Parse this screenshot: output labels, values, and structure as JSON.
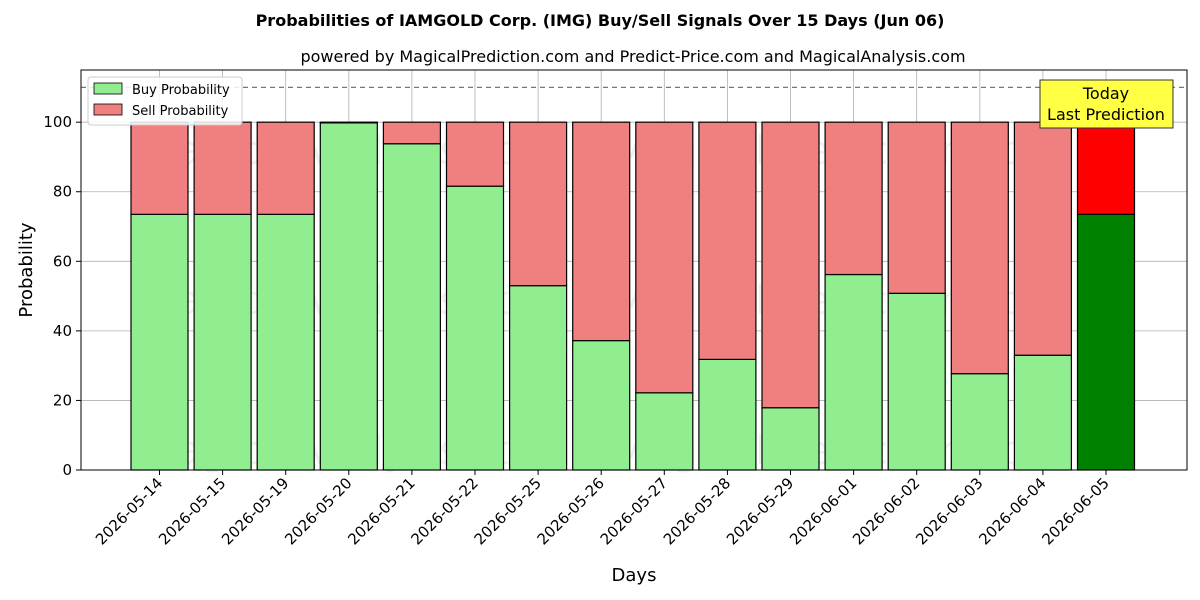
{
  "chart_data": {
    "type": "bar",
    "stacked": true,
    "title": "Probabilities of IAMGOLD Corp. (IMG) Buy/Sell Signals Over 15 Days (Jun 06)",
    "subtitle": "powered by MagicalPrediction.com and Predict-Price.com and MagicalAnalysis.com",
    "xlabel": "Days",
    "ylabel": "Probability",
    "ylim": [
      0,
      115
    ],
    "yticks": [
      0,
      20,
      40,
      60,
      80,
      100
    ],
    "reference_line": 110,
    "grid": true,
    "legend_position": "top-left",
    "categories": [
      "2026-05-14",
      "2026-05-15",
      "2026-05-19",
      "2026-05-20",
      "2026-05-21",
      "2026-05-22",
      "2026-05-25",
      "2026-05-26",
      "2026-05-27",
      "2026-05-28",
      "2026-05-29",
      "2026-06-01",
      "2026-06-02",
      "2026-06-03",
      "2026-06-04",
      "2026-06-05"
    ],
    "series": [
      {
        "name": "Buy Probability",
        "color": "#90ee90",
        "highlight_color": "#008000",
        "values": [
          73.5,
          73.5,
          73.5,
          99.8,
          93.8,
          81.6,
          53.0,
          37.2,
          22.2,
          31.8,
          17.9,
          56.2,
          50.8,
          27.7,
          33.0,
          73.5
        ]
      },
      {
        "name": "Sell Probability",
        "color": "#f08080",
        "highlight_color": "#ff0000",
        "values": [
          26.5,
          26.5,
          26.5,
          0.2,
          6.2,
          18.4,
          47.0,
          62.8,
          77.8,
          68.2,
          82.1,
          43.8,
          49.2,
          72.3,
          67.0,
          26.5
        ]
      }
    ],
    "highlight_index": 15,
    "annotation": {
      "line1": "Today",
      "line2": "Last Prediction",
      "bg": "#ffff44"
    },
    "watermarks": [
      "MagicalAnalysis.com",
      "MagicalPrediction.com"
    ]
  }
}
